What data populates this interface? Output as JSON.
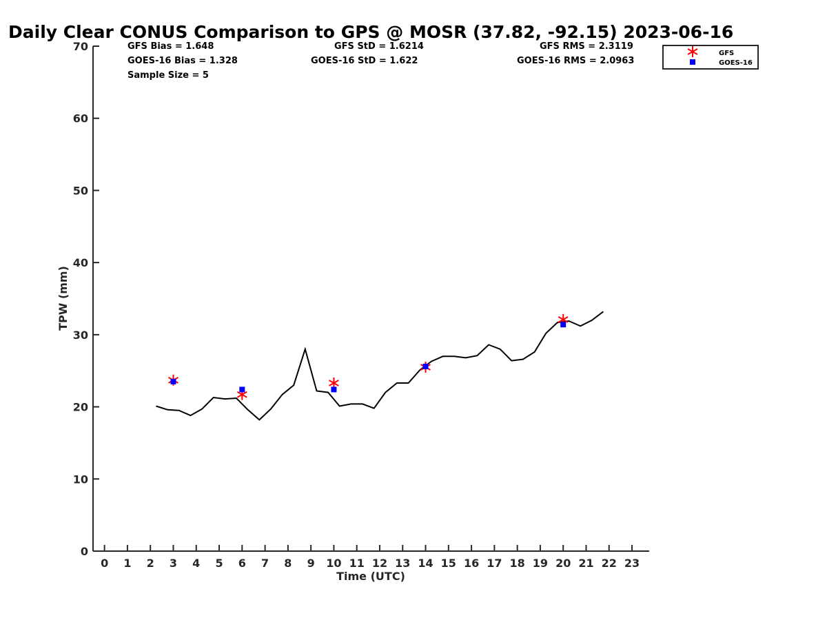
{
  "chart_data": {
    "type": "line",
    "title": "Daily Clear CONUS Comparison to GPS @ MOSR (37.82, -92.15) 2023-06-16",
    "xlabel": "Time (UTC)",
    "ylabel": "TPW (mm)",
    "xlim": [
      -0.5,
      23.75
    ],
    "ylim": [
      0,
      70
    ],
    "x_ticks": [
      0,
      1,
      2,
      3,
      4,
      5,
      6,
      7,
      8,
      9,
      10,
      11,
      12,
      13,
      14,
      15,
      16,
      17,
      18,
      19,
      20,
      21,
      22,
      23
    ],
    "x_tick_labels": [
      "0",
      "1",
      "2",
      "3",
      "4",
      "5",
      "6",
      "7",
      "8",
      "9",
      "10",
      "11",
      "12",
      "13",
      "14",
      "15",
      "16",
      "17",
      "18",
      "19",
      "20",
      "21",
      "22",
      "23"
    ],
    "y_ticks": [
      0,
      10,
      20,
      30,
      40,
      50,
      60,
      70
    ],
    "y_tick_labels": [
      "0",
      "10",
      "20",
      "30",
      "40",
      "50",
      "60",
      "70"
    ],
    "series": [
      {
        "name": "GPS",
        "color": "#000000",
        "x": [
          2.25,
          2.75,
          3.25,
          3.75,
          4.25,
          4.75,
          5.25,
          5.75,
          6.25,
          6.75,
          7.25,
          7.75,
          8.25,
          8.75,
          9.25,
          9.75,
          10.25,
          10.75,
          11.25,
          11.75,
          12.25,
          12.75,
          13.25,
          13.75,
          14.25,
          14.75,
          15.25,
          15.75,
          16.25,
          16.75,
          17.25,
          17.75,
          18.25,
          18.75,
          19.25,
          19.75,
          20.25,
          20.75,
          21.25,
          21.75
        ],
        "y": [
          20.1,
          19.6,
          19.5,
          18.8,
          19.7,
          21.3,
          21.1,
          21.2,
          19.6,
          18.2,
          19.7,
          21.7,
          23.0,
          28.0,
          22.2,
          22.0,
          20.1,
          20.4,
          20.4,
          19.8,
          22.0,
          23.3,
          23.3,
          25.1,
          26.3,
          27.0,
          27.0,
          26.8,
          27.1,
          28.6,
          28.0,
          26.4,
          26.6,
          27.6,
          30.2,
          31.7,
          31.9,
          31.2,
          32.0,
          33.2
        ]
      },
      {
        "name": "GFS",
        "color": "#ff0000",
        "marker": "asterisk",
        "x": [
          3,
          6,
          10,
          14,
          20
        ],
        "y": [
          23.7,
          21.7,
          23.3,
          25.5,
          32.1
        ]
      },
      {
        "name": "GOES-16",
        "color": "#0000ff",
        "marker": "square",
        "x": [
          3,
          6,
          10,
          14,
          20
        ],
        "y": [
          23.5,
          22.4,
          22.4,
          25.6,
          31.4
        ]
      }
    ],
    "legend": {
      "placement": "top-right-outside",
      "entries": [
        {
          "label": "GFS",
          "color": "#ff0000",
          "marker": "asterisk"
        },
        {
          "label": "GOES-16",
          "color": "#0000ff",
          "marker": "square"
        }
      ]
    },
    "stats": {
      "gfs_bias": "GFS Bias = 1.648",
      "goes_bias": "GOES-16 Bias = 1.328",
      "sample_size": "Sample Size = 5",
      "gfs_std": "GFS StD = 1.6214",
      "goes_std": "GOES-16 StD = 1.622",
      "gfs_rms": "GFS RMS = 2.3119",
      "goes_rms": "GOES-16 RMS = 2.0963"
    }
  }
}
